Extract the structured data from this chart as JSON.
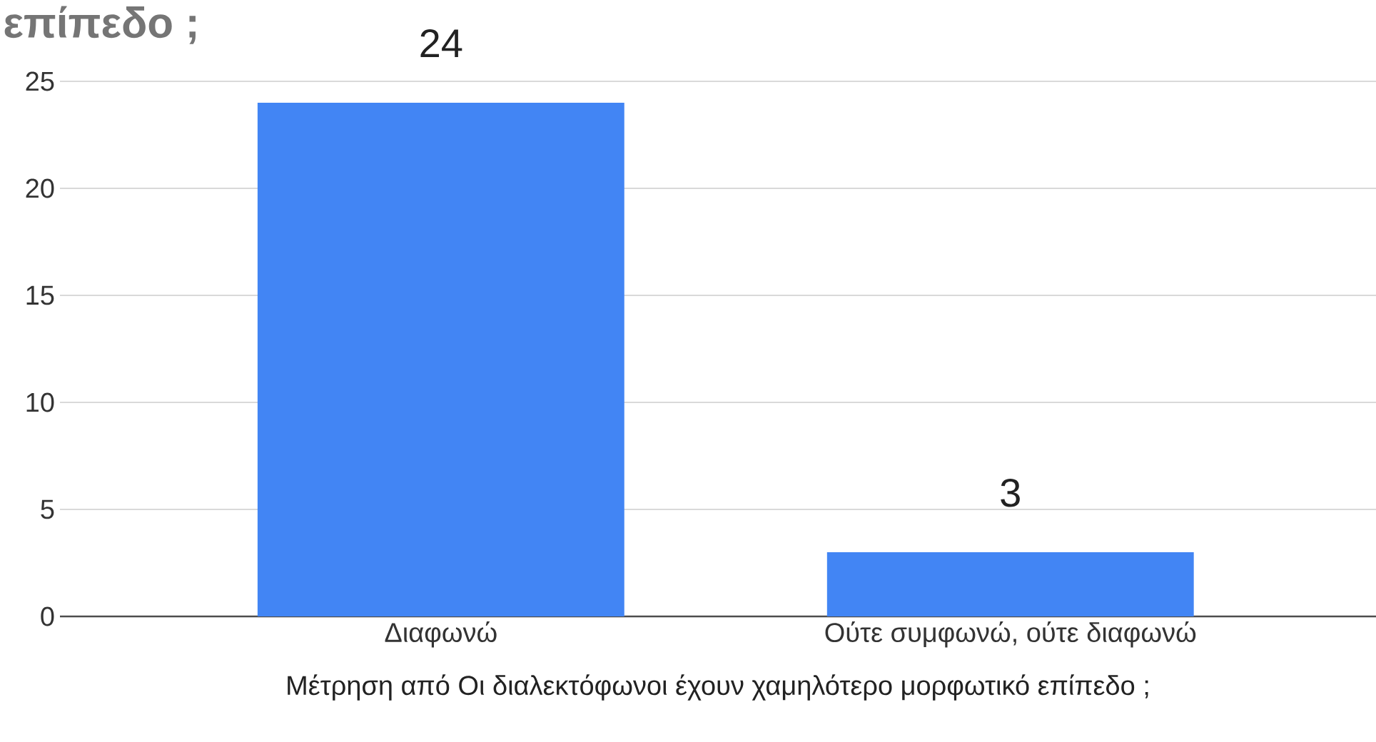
{
  "chart_data": {
    "type": "bar",
    "title": "επίπεδο ;",
    "xlabel": "Μέτρηση από Οι διαλεκτόφωνοι έχουν χαμηλότερο μορφωτικό επίπεδο ;",
    "categories": [
      "Διαφωνώ",
      "Ούτε συμφωνώ, ούτε διαφωνώ"
    ],
    "values": [
      24,
      3
    ],
    "color": "#4285f4",
    "ylim": [
      0,
      25
    ],
    "yticks": [
      0,
      5,
      10,
      15,
      20,
      25
    ],
    "grid": "y",
    "data_labels": true
  }
}
